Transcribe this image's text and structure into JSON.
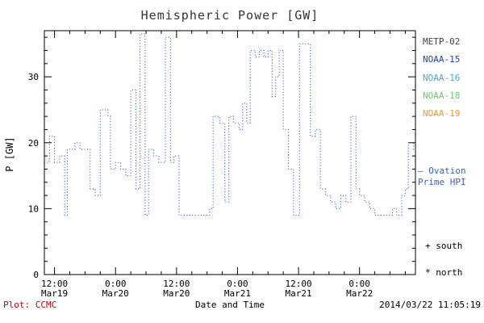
{
  "title": "Hemispheric Power [GW]",
  "colors": {
    "line": "#3a5fcd",
    "axes": "#000000",
    "title": "#333333",
    "footer_left": "#cc0000",
    "ovation_text": "#3a5fcd"
  },
  "legend": {
    "satellites": [
      {
        "label": "METP-02",
        "color": "#444444"
      },
      {
        "label": "NOAA-15",
        "color": "#2244bb"
      },
      {
        "label": "NOAA-16",
        "color": "#44aacc"
      },
      {
        "label": "NOAA-18",
        "color": "#66cc66"
      },
      {
        "label": "NOAA-19",
        "color": "#ee9933"
      }
    ],
    "ovation_line1": "— Ovation",
    "ovation_line2": "Prime HPI",
    "south": "+ south",
    "north": "* north"
  },
  "footer": {
    "left": "Plot: CCMC",
    "center": "Date and Time",
    "right": "2014/03/22 11:05:19"
  },
  "chart_data": {
    "type": "line",
    "line_style": "dotted-step",
    "title": "Hemispheric Power [GW]",
    "xlabel": "Date and Time",
    "ylabel": "P [GW]",
    "ylim": [
      0,
      37
    ],
    "yticks": [
      0,
      10,
      20,
      30
    ],
    "y_minor_step": 2,
    "xlim": [
      0,
      73
    ],
    "x_unit": "hours since 2014-03-19 10:00 UT",
    "x_minor_step": 3,
    "xticks": [
      {
        "t": 2,
        "line1": "12:00",
        "line2": "Mar19"
      },
      {
        "t": 14,
        "line1": "0:00",
        "line2": "Mar20"
      },
      {
        "t": 26,
        "line1": "12:00",
        "line2": "Mar20"
      },
      {
        "t": 38,
        "line1": "0:00",
        "line2": "Mar21"
      },
      {
        "t": 50,
        "line1": "12:00",
        "line2": "Mar21"
      },
      {
        "t": 62,
        "line1": "0:00",
        "line2": "Mar22"
      }
    ],
    "legend_entries": [
      "METP-02",
      "NOAA-15",
      "NOAA-16",
      "NOAA-18",
      "NOAA-19",
      "Ovation Prime HPI",
      "+ south",
      "* north"
    ],
    "series": [
      {
        "name": "Ovation Prime HPI",
        "color": "#3a5fcd",
        "points": [
          [
            0,
            17
          ],
          [
            1,
            21
          ],
          [
            2,
            17
          ],
          [
            3,
            18
          ],
          [
            4,
            9
          ],
          [
            4.5,
            19
          ],
          [
            6,
            20
          ],
          [
            7,
            19
          ],
          [
            9,
            13
          ],
          [
            10,
            12
          ],
          [
            11,
            25
          ],
          [
            12.5,
            24
          ],
          [
            13,
            16
          ],
          [
            14,
            17
          ],
          [
            15,
            16
          ],
          [
            16,
            15
          ],
          [
            17,
            28
          ],
          [
            18,
            13
          ],
          [
            18.8,
            36.5
          ],
          [
            19.8,
            9
          ],
          [
            20.5,
            19
          ],
          [
            21.5,
            18
          ],
          [
            22.5,
            17
          ],
          [
            23.8,
            36
          ],
          [
            24.8,
            17
          ],
          [
            25.5,
            18
          ],
          [
            26.5,
            9
          ],
          [
            32.5,
            10
          ],
          [
            33.2,
            24
          ],
          [
            34.5,
            23
          ],
          [
            35.5,
            11
          ],
          [
            36.3,
            24
          ],
          [
            37.2,
            23
          ],
          [
            38.3,
            22
          ],
          [
            39,
            26
          ],
          [
            39.8,
            23
          ],
          [
            40.5,
            34
          ],
          [
            41.5,
            33
          ],
          [
            42.3,
            34
          ],
          [
            43.2,
            33
          ],
          [
            44,
            34
          ],
          [
            44.8,
            27
          ],
          [
            45.5,
            30
          ],
          [
            46.2,
            34
          ],
          [
            47,
            22
          ],
          [
            48,
            16
          ],
          [
            49,
            9
          ],
          [
            50.2,
            35
          ],
          [
            51.5,
            35
          ],
          [
            52.3,
            21
          ],
          [
            53.3,
            22
          ],
          [
            54.3,
            13
          ],
          [
            55.3,
            12
          ],
          [
            56.3,
            11
          ],
          [
            57.3,
            10
          ],
          [
            58.3,
            12
          ],
          [
            59.3,
            11
          ],
          [
            60.3,
            24
          ],
          [
            61.3,
            13
          ],
          [
            62,
            12
          ],
          [
            63,
            11
          ],
          [
            64,
            10
          ],
          [
            65,
            9
          ],
          [
            68.5,
            10
          ],
          [
            69.3,
            9
          ],
          [
            70.3,
            12
          ],
          [
            71,
            13
          ],
          [
            71.6,
            20
          ],
          [
            72.6,
            19
          ]
        ]
      }
    ]
  }
}
